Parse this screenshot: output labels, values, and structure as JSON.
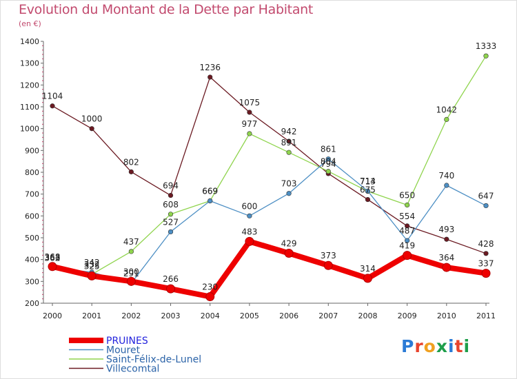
{
  "title": "Evolution du Montant de la Dette par Habitant",
  "subtitle": "(en €)",
  "logo": {
    "text": "Proxiti",
    "colors": [
      "#2b7bd6",
      "#e8432d",
      "#f0a020",
      "#1e9e4a",
      "#2b7bd6",
      "#e8432d",
      "#1e9e4a"
    ]
  },
  "chart_data": {
    "type": "line",
    "title": "Evolution du Montant de la Dette par Habitant",
    "subtitle": "(en €)",
    "x": [
      2000,
      2001,
      2002,
      2003,
      2004,
      2005,
      2006,
      2007,
      2008,
      2009,
      2010,
      2011
    ],
    "ylim": [
      200,
      1400
    ],
    "yticks": [
      200,
      300,
      400,
      500,
      600,
      700,
      800,
      900,
      1000,
      1100,
      1200,
      1300,
      1400
    ],
    "grid": "none",
    "legend_position": "bottom-left",
    "series": [
      {
        "name": "PRUINES",
        "color": "#ee0000",
        "values": [
          368,
          325,
          300,
          266,
          230,
          483,
          429,
          373,
          314,
          419,
          364,
          337
        ]
      },
      {
        "name": "Mouret",
        "color": "#4d8fc4",
        "values": [
          362,
          342,
          291,
          527,
          669,
          600,
          703,
          861,
          714,
          487,
          740,
          647
        ]
      },
      {
        "name": "Saint-Félix-de-Lunel",
        "color": "#8fd44d",
        "values": [
          363,
          332,
          437,
          608,
          669,
          977,
          891,
          804,
          713,
          650,
          1042,
          1333
        ]
      },
      {
        "name": "Villecomtal",
        "color": "#6b1a22",
        "values": [
          1104,
          1000,
          802,
          694,
          1236,
          1075,
          942,
          794,
          675,
          554,
          493,
          428
        ]
      }
    ]
  }
}
